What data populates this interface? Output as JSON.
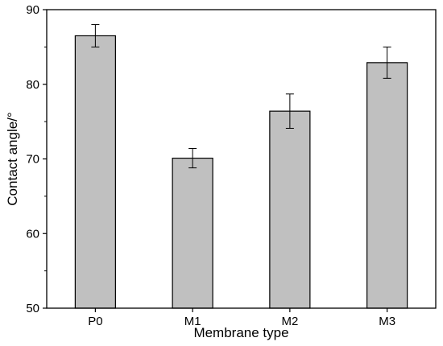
{
  "chart_data": {
    "type": "bar",
    "categories": [
      "P0",
      "M1",
      "M2",
      "M3"
    ],
    "values": [
      86.5,
      70.1,
      76.4,
      82.9
    ],
    "error": [
      1.5,
      1.3,
      2.3,
      2.1
    ],
    "xlabel": "Membrane type",
    "ylabel": "Contact angle/°",
    "ylim": [
      50,
      90
    ],
    "yticks": [
      50,
      60,
      70,
      80,
      90
    ],
    "grid": false,
    "legend": "none",
    "bar_color": "#c0c0c0",
    "edge_color": "#000000"
  }
}
